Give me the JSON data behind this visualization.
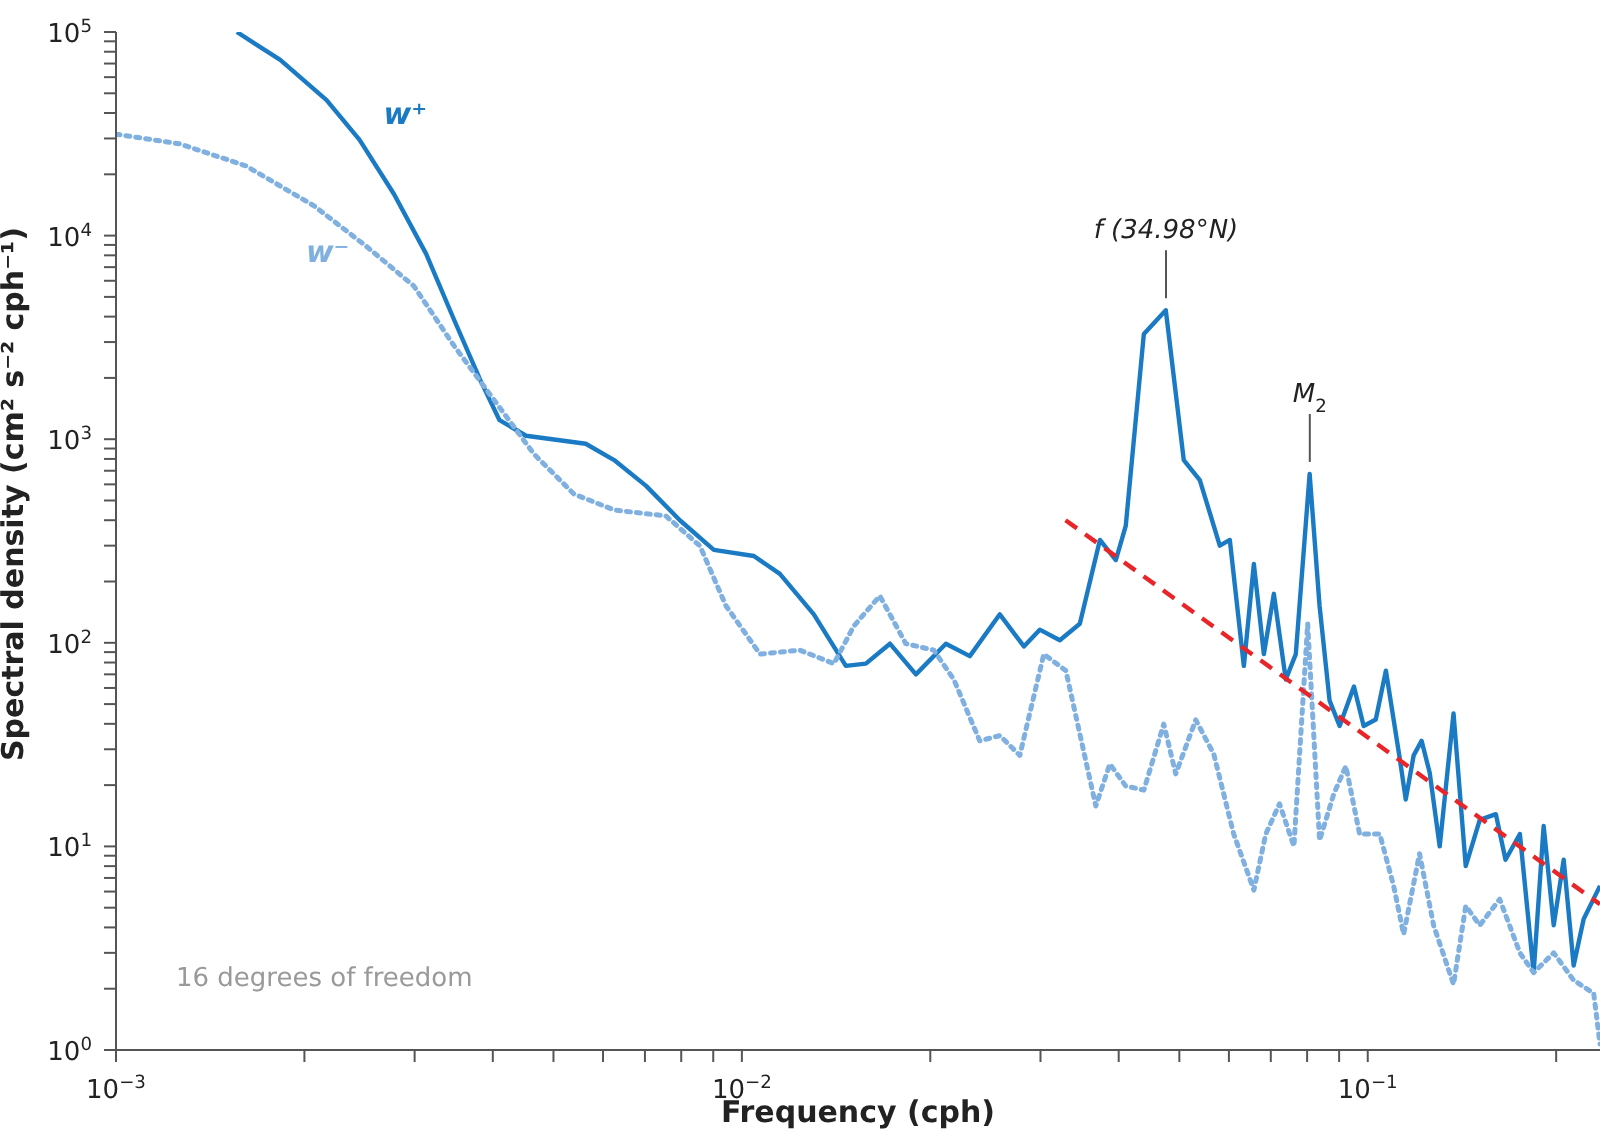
{
  "chart_data": {
    "type": "line",
    "xlabel": "Frequency (cph)",
    "ylabel": "Spectral density (cm² s⁻² cph⁻¹)",
    "log": "xy",
    "legend": false,
    "marker": "none",
    "xlim": [
      0.001,
      0.235
    ],
    "ylim": [
      1,
      100000
    ],
    "xticks": [
      {
        "value": 0.001,
        "label": "10$^{−3}$"
      },
      {
        "value": 0.002,
        "label": null
      },
      {
        "value": 0.003,
        "label": null
      },
      {
        "value": 0.004,
        "label": null
      },
      {
        "value": 0.005,
        "label": null
      },
      {
        "value": 0.006,
        "label": null
      },
      {
        "value": 0.007,
        "label": null
      },
      {
        "value": 0.008,
        "label": null
      },
      {
        "value": 0.009,
        "label": null
      },
      {
        "value": 0.01,
        "label": "10$^{−2}$"
      },
      {
        "value": 0.02,
        "label": null
      },
      {
        "value": 0.03,
        "label": null
      },
      {
        "value": 0.04,
        "label": null
      },
      {
        "value": 0.05,
        "label": null
      },
      {
        "value": 0.06,
        "label": null
      },
      {
        "value": 0.07,
        "label": null
      },
      {
        "value": 0.08,
        "label": null
      },
      {
        "value": 0.09,
        "label": null
      },
      {
        "value": 0.1,
        "label": "10$^{−1}$"
      },
      {
        "value": 0.2,
        "label": null
      }
    ],
    "yticks": [
      {
        "value": 1,
        "label": "10$^{0}$"
      },
      {
        "value": 2,
        "label": null
      },
      {
        "value": 3,
        "label": null
      },
      {
        "value": 4,
        "label": null
      },
      {
        "value": 5,
        "label": null
      },
      {
        "value": 6,
        "label": null
      },
      {
        "value": 7,
        "label": null
      },
      {
        "value": 8,
        "label": null
      },
      {
        "value": 9,
        "label": null
      },
      {
        "value": 10,
        "label": "10$^{1}$"
      },
      {
        "value": 20,
        "label": null
      },
      {
        "value": 30,
        "label": null
      },
      {
        "value": 40,
        "label": null
      },
      {
        "value": 50,
        "label": null
      },
      {
        "value": 60,
        "label": null
      },
      {
        "value": 70,
        "label": null
      },
      {
        "value": 80,
        "label": null
      },
      {
        "value": 90,
        "label": null
      },
      {
        "value": 100,
        "label": "10$^{2}$"
      },
      {
        "value": 200,
        "label": null
      },
      {
        "value": 300,
        "label": null
      },
      {
        "value": 400,
        "label": null
      },
      {
        "value": 500,
        "label": null
      },
      {
        "value": 600,
        "label": null
      },
      {
        "value": 700,
        "label": null
      },
      {
        "value": 800,
        "label": null
      },
      {
        "value": 900,
        "label": null
      },
      {
        "value": 1000,
        "label": "10$^{3}$"
      },
      {
        "value": 2000,
        "label": null
      },
      {
        "value": 3000,
        "label": null
      },
      {
        "value": 4000,
        "label": null
      },
      {
        "value": 5000,
        "label": null
      },
      {
        "value": 6000,
        "label": null
      },
      {
        "value": 7000,
        "label": null
      },
      {
        "value": 8000,
        "label": null
      },
      {
        "value": 9000,
        "label": null
      },
      {
        "value": 10000,
        "label": "10$^{4}$"
      },
      {
        "value": 20000,
        "label": null
      },
      {
        "value": 30000,
        "label": null
      },
      {
        "value": 40000,
        "label": null
      },
      {
        "value": 50000,
        "label": null
      },
      {
        "value": 60000,
        "label": null
      },
      {
        "value": 70000,
        "label": null
      },
      {
        "value": 80000,
        "label": null
      },
      {
        "value": 90000,
        "label": null
      },
      {
        "value": 100000,
        "label": "10$^{5}$"
      }
    ],
    "series": [
      {
        "name": "w⁺",
        "color": "#1a7bc4",
        "line_style": "solid",
        "x": [
          0.00156,
          0.00183,
          0.00217,
          0.00245,
          0.00278,
          0.00313,
          0.00347,
          0.00382,
          0.0041,
          0.00452,
          0.00563,
          0.00625,
          0.00703,
          0.00796,
          0.00902,
          0.01045,
          0.0115,
          0.01303,
          0.01466,
          0.01578,
          0.01724,
          0.01897,
          0.02118,
          0.02313,
          0.02583,
          0.02822,
          0.02992,
          0.03221,
          0.03467,
          0.03733,
          0.03958,
          0.04105,
          0.04388,
          0.04757,
          0.05082,
          0.05391,
          0.05802,
          0.0602,
          0.06339,
          0.06577,
          0.06823,
          0.07079,
          0.07396,
          0.07674,
          0.08075,
          0.08375,
          0.0869,
          0.09016,
          0.09505,
          0.0985,
          0.103,
          0.1069,
          0.1125,
          0.115,
          0.1184,
          0.1219,
          0.1256,
          0.1303,
          0.1371,
          0.1434,
          0.151,
          0.1602,
          0.166,
          0.175,
          0.1841,
          0.191,
          0.1982,
          0.2056,
          0.2133,
          0.2213,
          0.235
        ],
        "values": [
          100000,
          72900,
          46300,
          29500,
          16000,
          8130,
          3850,
          1950,
          1240,
          1040,
          950,
          790,
          590,
          400,
          286,
          267,
          218,
          138,
          77,
          79,
          99,
          70,
          99,
          86,
          138,
          96,
          116,
          103,
          124,
          320,
          255,
          375,
          3290,
          4300,
          790,
          630,
          300,
          320,
          77,
          244,
          88,
          174,
          66,
          88,
          675,
          152,
          52,
          39,
          61,
          39,
          42,
          73,
          27,
          17,
          28,
          33,
          23,
          10,
          45,
          8,
          13.5,
          14.4,
          8.6,
          11.5,
          2.4,
          12.6,
          4.1,
          8.6,
          2.6,
          4.4,
          6.4
        ]
      },
      {
        "name": "w⁻",
        "color": "#7fb0e0",
        "line_style": "dotted",
        "x": [
          0.001,
          0.001265,
          0.001613,
          0.002072,
          0.002508,
          0.002992,
          0.00347,
          0.004017,
          0.004653,
          0.005391,
          0.00625,
          0.00756,
          0.00857,
          0.00943,
          0.01069,
          0.01238,
          0.01403,
          0.0151,
          0.01661,
          0.01828,
          0.02026,
          0.02181,
          0.02399,
          0.02583,
          0.0278,
          0.03037,
          0.03293,
          0.03677,
          0.03872,
          0.04105,
          0.04388,
          0.04721,
          0.04934,
          0.05311,
          0.05675,
          0.06107,
          0.06577,
          0.06871,
          0.07228,
          0.07621,
          0.08017,
          0.08375,
          0.08826,
          0.09226,
          0.09705,
          0.1045,
          0.11,
          0.1141,
          0.121,
          0.1274,
          0.1371,
          0.1434,
          0.151,
          0.1625,
          0.175,
          0.1841,
          0.1982,
          0.2133,
          0.2296,
          0.235
        ],
        "values": [
          31500,
          28200,
          22000,
          14000,
          8890,
          5650,
          2870,
          1560,
          846,
          538,
          449,
          420,
          299,
          152,
          88,
          92,
          79,
          121,
          170,
          99,
          92,
          66,
          33,
          35,
          28,
          88,
          73,
          15.8,
          25.4,
          19.8,
          18.9,
          39.9,
          22.7,
          41.8,
          28.4,
          11.5,
          6.1,
          11.5,
          16.2,
          10,
          124,
          10.7,
          18.1,
          24.8,
          11.5,
          11.5,
          6.4,
          3.7,
          9.2,
          4.1,
          2.1,
          5.1,
          4.1,
          5.5,
          3,
          2.4,
          3,
          2.2,
          1.9,
          1.07
        ]
      },
      {
        "type": "line",
        "color": "#e8262a",
        "line_style": "dashed",
        "x": [
          0.0329,
          0.235
        ],
        "values": [
          400,
          5.2
        ]
      }
    ],
    "annotations": [
      {
        "text": "f (34.98°N)",
        "x": 0.0476,
        "y": 4300
      },
      {
        "text": "M$_{2}$",
        "x": 0.0808,
        "y": 675
      },
      "16 degrees of freedom"
    ]
  }
}
